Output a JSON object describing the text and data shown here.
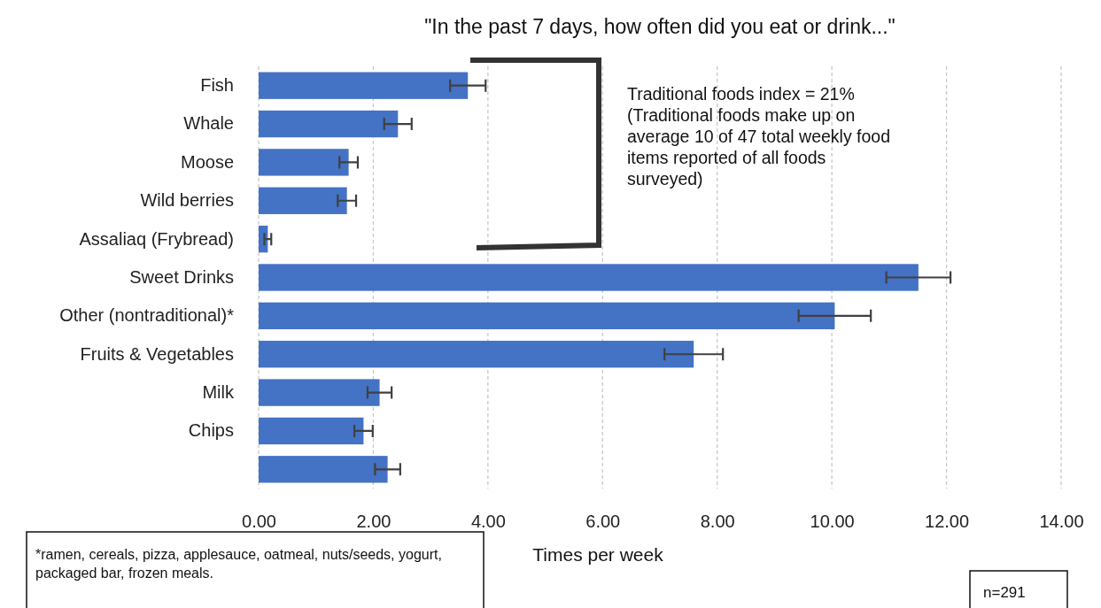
{
  "chart_data": {
    "type": "bar",
    "orientation": "horizontal",
    "title": "\"In the past 7 days, how often did you eat or drink...\"",
    "categories": [
      "Fish",
      "Whale",
      "Moose",
      "Wild berries",
      "Assaliaq (Frybread)",
      "Sweet Drinks",
      "Other (nontraditional)*",
      "Fruits & Vegetables",
      "Milk",
      "Chips",
      null
    ],
    "values": [
      3.65,
      2.43,
      1.57,
      1.54,
      0.16,
      11.51,
      10.05,
      7.59,
      2.11,
      1.83,
      2.25
    ],
    "errors": [
      0.31,
      0.24,
      0.16,
      0.16,
      0.06,
      0.56,
      0.63,
      0.51,
      0.21,
      0.16,
      0.22
    ],
    "color": "#4472c4",
    "xlabel": "Times per week",
    "xlim": [
      0,
      14
    ],
    "xticks": [
      {
        "value": 0,
        "label": "0.00"
      },
      {
        "value": 2,
        "label": "2.00"
      },
      {
        "value": 4,
        "label": "4.00"
      },
      {
        "value": 6,
        "label": "6.00"
      },
      {
        "value": 8,
        "label": "8.00"
      },
      {
        "value": 10,
        "label": "10.00"
      },
      {
        "value": 12,
        "label": "12.00"
      },
      {
        "value": 14,
        "label": "14.00"
      }
    ],
    "grid": "x",
    "annotations": [
      "Traditional foods index = 21% (Traditional foods make up on average 10 of 47 total weekly food items reported of all foods surveyed)",
      "*ramen, cereals, pizza, applesauce, oatmeal, nuts/seeds, yogurt, packaged bar, frozen meals.",
      "n=291"
    ]
  }
}
